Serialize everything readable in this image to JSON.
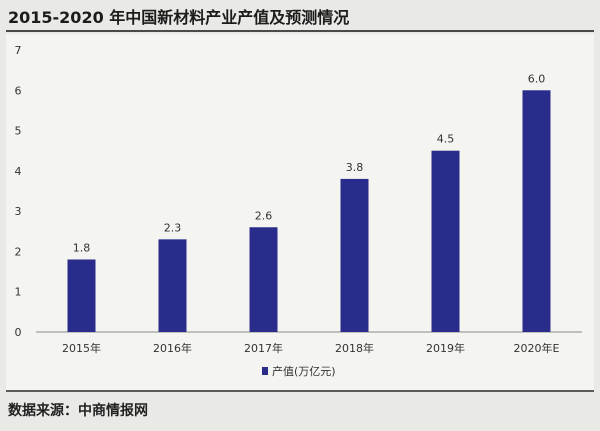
{
  "header": {
    "title": "2015-2020 年中国新材料产业产值及预测情况"
  },
  "footer": {
    "source": "数据来源：中商情报网"
  },
  "colors": {
    "bar": "#2a2c8c",
    "axis": "#8a8a8a",
    "text": "#333333"
  },
  "chart_data": {
    "type": "bar",
    "categories": [
      "2015年",
      "2016年",
      "2017年",
      "2018年",
      "2019年",
      "2020年E"
    ],
    "series": [
      {
        "name": "产值(万亿元)",
        "values": [
          1.8,
          2.3,
          2.6,
          3.8,
          4.5,
          6.0
        ]
      }
    ],
    "data_labels": [
      "1.8",
      "2.3",
      "2.6",
      "3.8",
      "4.5",
      "6.0"
    ],
    "y_ticks": [
      "0",
      "1",
      "2",
      "3",
      "4",
      "5",
      "6",
      "7"
    ],
    "ylim": [
      0,
      7
    ],
    "grid": false,
    "legend": {
      "position": "bottom",
      "label": "产值(万亿元)"
    },
    "title": "2015-2020 年中国新材料产业产值及预测情况",
    "xlabel": "",
    "ylabel": ""
  }
}
